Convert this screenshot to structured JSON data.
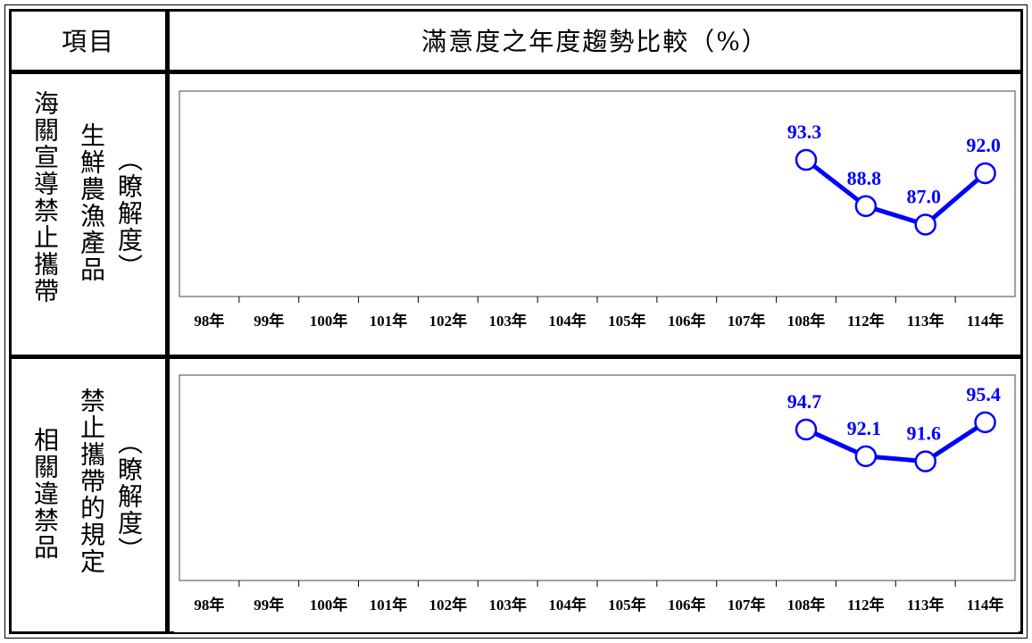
{
  "header": {
    "item_label": "項目",
    "trend_label": "滿意度之年度趨勢比較（%）"
  },
  "rows": [
    {
      "category_label": "海關宣導禁止攜帶",
      "topic_label": "生鮮農漁產品",
      "metric_label": "（瞭解度）"
    },
    {
      "category_label": "相關違禁品",
      "topic_label": "禁止攜帶的規定",
      "metric_label": "（瞭解度）"
    }
  ],
  "colors": {
    "series": "#0000ff",
    "axis": "#000000"
  },
  "chart_data": [
    {
      "type": "line",
      "categories": [
        "98年",
        "99年",
        "100年",
        "101年",
        "102年",
        "103年",
        "104年",
        "105年",
        "106年",
        "107年",
        "108年",
        "112年",
        "113年",
        "114年"
      ],
      "series": [
        {
          "values": [
            null,
            null,
            null,
            null,
            null,
            null,
            null,
            null,
            null,
            null,
            93.3,
            88.8,
            87.0,
            92.0
          ]
        }
      ],
      "data_labels": [
        "",
        "",
        "",
        "",
        "",
        "",
        "",
        "",
        "",
        "",
        "93.3",
        "88.8",
        "87.0",
        "92.0"
      ],
      "ylim": [
        80,
        100
      ],
      "marker": "open-circle",
      "grid": false
    },
    {
      "type": "line",
      "categories": [
        "98年",
        "99年",
        "100年",
        "101年",
        "102年",
        "103年",
        "104年",
        "105年",
        "106年",
        "107年",
        "108年",
        "112年",
        "113年",
        "114年"
      ],
      "series": [
        {
          "values": [
            null,
            null,
            null,
            null,
            null,
            null,
            null,
            null,
            null,
            null,
            94.7,
            92.1,
            91.6,
            95.4
          ]
        }
      ],
      "data_labels": [
        "",
        "",
        "",
        "",
        "",
        "",
        "",
        "",
        "",
        "",
        "94.7",
        "92.1",
        "91.6",
        "95.4"
      ],
      "ylim": [
        80,
        100
      ],
      "marker": "open-circle",
      "grid": false
    }
  ]
}
